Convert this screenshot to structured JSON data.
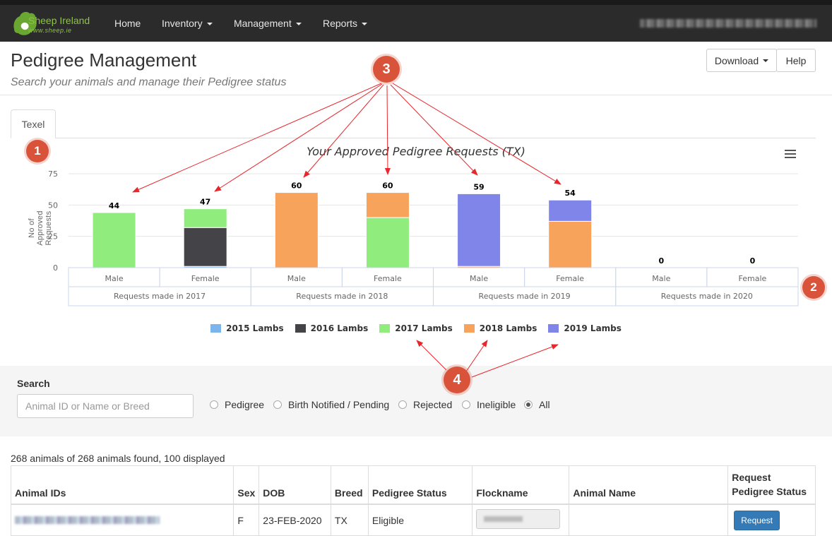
{
  "nav": {
    "logo_text": "Sheep Ireland",
    "logo_sub": "www.sheep.ie",
    "items": [
      {
        "label": "Home",
        "dropdown": false
      },
      {
        "label": "Inventory",
        "dropdown": true
      },
      {
        "label": "Management",
        "dropdown": true
      },
      {
        "label": "Reports",
        "dropdown": true
      }
    ]
  },
  "header": {
    "title": "Pedigree Management",
    "subtitle": "Search your animals and manage their Pedigree status",
    "download_label": "Download",
    "help_label": "Help"
  },
  "tabs": [
    {
      "label": "Texel"
    }
  ],
  "chart_data": {
    "type": "bar",
    "stacked": true,
    "title": "Your Approved Pedigree Requests (TX)",
    "ylabel": "No of Approved Requests",
    "ylim": [
      0,
      75
    ],
    "yticks": [
      0,
      25,
      50,
      75
    ],
    "groups": [
      "Requests made in 2017",
      "Requests made in 2018",
      "Requests made in 2019",
      "Requests made in 2020"
    ],
    "categories": [
      "Male",
      "Female",
      "Male",
      "Female",
      "Male",
      "Female",
      "Male",
      "Female"
    ],
    "totals": [
      44,
      47,
      60,
      60,
      59,
      54,
      0,
      0
    ],
    "series": [
      {
        "name": "2015 Lambs",
        "color": "#7cb5ec",
        "values": [
          0,
          1,
          0,
          0,
          0,
          0,
          0,
          0
        ]
      },
      {
        "name": "2016 Lambs",
        "color": "#434348",
        "values": [
          0,
          31,
          0,
          0,
          0,
          0,
          0,
          0
        ]
      },
      {
        "name": "2017 Lambs",
        "color": "#90ed7d",
        "values": [
          44,
          15,
          0,
          40,
          0,
          0,
          0,
          0
        ]
      },
      {
        "name": "2018 Lambs",
        "color": "#f7a35c",
        "values": [
          0,
          0,
          60,
          20,
          1,
          37,
          0,
          0
        ]
      },
      {
        "name": "2019 Lambs",
        "color": "#8085e9",
        "values": [
          0,
          0,
          0,
          0,
          58,
          17,
          0,
          0
        ]
      }
    ],
    "legend_position": "bottom-center",
    "grid": true
  },
  "search": {
    "label": "Search",
    "placeholder": "Animal ID or Name or Breed",
    "filters": [
      {
        "label": "Pedigree",
        "checked": false
      },
      {
        "label": "Birth Notified / Pending",
        "checked": false
      },
      {
        "label": "Rejected",
        "checked": false
      },
      {
        "label": "Ineligible",
        "checked": false
      },
      {
        "label": "All",
        "checked": true
      }
    ]
  },
  "results": {
    "count_text": "268 animals of 268 animals found, 100 displayed",
    "columns": [
      "Animal IDs",
      "Sex",
      "DOB",
      "Breed",
      "Pedigree Status",
      "Flockname",
      "Animal Name",
      "Request Pedigree Status"
    ],
    "rows": [
      {
        "sex": "F",
        "dob": "23-FEB-2020",
        "breed": "TX",
        "status": "Eligible",
        "animal_name": "",
        "action": "Request"
      }
    ]
  },
  "annotations": [
    "1",
    "2",
    "3",
    "4"
  ]
}
